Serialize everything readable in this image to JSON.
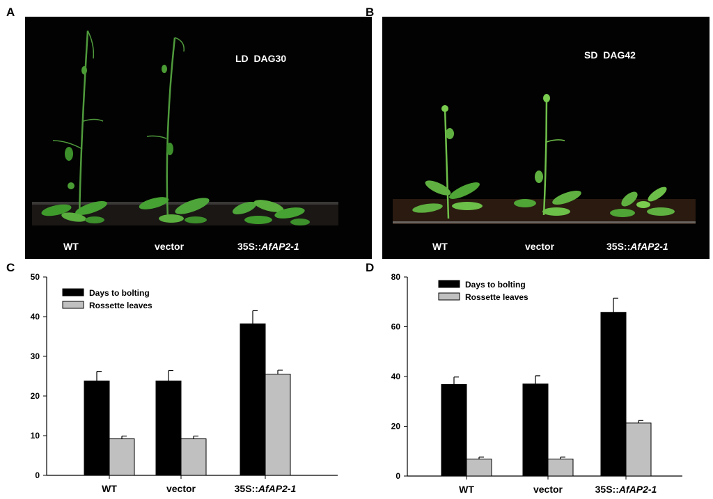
{
  "panels": {
    "a": {
      "letter": "A",
      "condition_label": "LD  DAG30",
      "labels": [
        "WT",
        "vector",
        "35S::",
        "AfAP2-1"
      ]
    },
    "b": {
      "letter": "B",
      "condition_label": "SD  DAG42",
      "labels": [
        "WT",
        "vector",
        "35S::",
        "AfAP2-1"
      ]
    },
    "c": {
      "letter": "C"
    },
    "d": {
      "letter": "D"
    }
  },
  "chart_data": [
    {
      "type": "bar",
      "panel": "C",
      "categories": [
        "WT",
        "vector",
        "35S::AfAP2-1"
      ],
      "category_label_parts": [
        [
          "WT",
          ""
        ],
        [
          "vector",
          ""
        ],
        [
          "35S::",
          "AfAP2-1"
        ]
      ],
      "series": [
        {
          "name": "Days to bolting",
          "values": [
            23.8,
            23.8,
            38.2
          ],
          "errors": [
            2.4,
            2.6,
            3.3
          ],
          "color": "#000000"
        },
        {
          "name": "Rossette leaves",
          "values": [
            9.2,
            9.2,
            25.5
          ],
          "errors": [
            0.7,
            0.7,
            1.0
          ],
          "color": "#c0c0c0"
        }
      ],
      "ylim": [
        0,
        50
      ],
      "yticks": [
        0,
        10,
        20,
        30,
        40,
        50
      ],
      "legend_position": "top-left"
    },
    {
      "type": "bar",
      "panel": "D",
      "categories": [
        "WT",
        "vector",
        "35S::AfAP2-1"
      ],
      "category_label_parts": [
        [
          "WT",
          ""
        ],
        [
          "vector",
          ""
        ],
        [
          "35S::",
          "AfAP2-1"
        ]
      ],
      "series": [
        {
          "name": "Days to bolting",
          "values": [
            36.8,
            37.0,
            65.8
          ],
          "errors": [
            3.0,
            3.3,
            5.7
          ],
          "color": "#000000"
        },
        {
          "name": "Rossette leaves",
          "values": [
            6.8,
            6.8,
            21.3
          ],
          "errors": [
            0.8,
            0.8,
            1.0
          ],
          "color": "#c0c0c0"
        }
      ],
      "ylim": [
        0,
        80
      ],
      "yticks": [
        0,
        20,
        40,
        60,
        80
      ],
      "legend_position": "top-left"
    }
  ]
}
